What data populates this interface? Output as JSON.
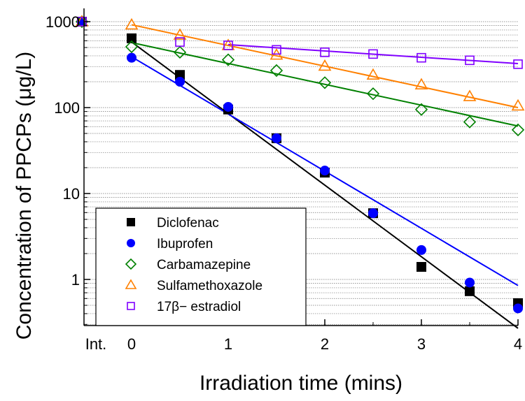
{
  "chart_data": {
    "type": "scatter",
    "title": "",
    "xlabel": "Irradiation time (mins)",
    "ylabel": "Concentration of PPCPs (μg/L)",
    "x_scale": "linear",
    "y_scale": "log",
    "xlim": [
      -1,
      4
    ],
    "ylim": [
      0.25,
      1000
    ],
    "x_tick_labels": [
      "Int.",
      "0",
      "1",
      "2",
      "3",
      "4"
    ],
    "y_tick_labels": [
      "1",
      "10",
      "100",
      "1000"
    ],
    "grid": "horizontal dotted gridlines at log minor ticks",
    "legend": {
      "placement": "bottom-left",
      "boxed": true
    },
    "series": [
      {
        "name": "Diclofenac",
        "marker": "filled-square",
        "color": "#000000",
        "initial": 1000,
        "x": [
          0,
          0.5,
          1,
          1.5,
          2,
          2.5,
          3,
          3.5,
          4
        ],
        "y": [
          640,
          240,
          95,
          44,
          17.5,
          5.9,
          1.4,
          0.73,
          0.53
        ],
        "fit_line": [
          [
            0,
            580
          ],
          [
            4,
            0.27
          ]
        ]
      },
      {
        "name": "Ibuprofen",
        "marker": "filled-circle",
        "color": "#0000ff",
        "initial": 1000,
        "x": [
          0,
          0.5,
          1,
          1.5,
          2,
          2.5,
          3,
          3.5,
          4
        ],
        "y": [
          380,
          200,
          102,
          44,
          18.5,
          5.9,
          2.2,
          0.92,
          0.46
        ],
        "fit_line": [
          [
            0,
            390
          ],
          [
            4,
            0.85
          ]
        ]
      },
      {
        "name": "Carbamazepine",
        "marker": "open-diamond",
        "color": "#008000",
        "initial": 1000,
        "x": [
          0,
          0.5,
          1,
          1.5,
          2,
          2.5,
          3,
          3.5,
          4
        ],
        "y": [
          510,
          440,
          360,
          270,
          195,
          145,
          95,
          68,
          55
        ],
        "fit_line": [
          [
            0,
            570
          ],
          [
            4,
            61
          ]
        ]
      },
      {
        "name": "Sulfamethoxazole",
        "marker": "open-triangle",
        "color": "#ff8000",
        "initial": 1000,
        "x": [
          0,
          0.5,
          1,
          1.5,
          2,
          2.5,
          3,
          3.5,
          4
        ],
        "y": [
          920,
          700,
          530,
          410,
          305,
          240,
          185,
          135,
          105
        ],
        "fit_line": [
          [
            0,
            920
          ],
          [
            4,
            100
          ]
        ]
      },
      {
        "name": "17β− estradiol",
        "marker": "open-square",
        "color": "#8000ff",
        "initial": 1000,
        "x": [
          0.5,
          1,
          1.5,
          2,
          2.5,
          3,
          3.5,
          4
        ],
        "y": [
          580,
          530,
          470,
          440,
          420,
          380,
          355,
          320
        ],
        "fit_line": [
          [
            1,
            540
          ],
          [
            4,
            325
          ]
        ]
      }
    ]
  }
}
